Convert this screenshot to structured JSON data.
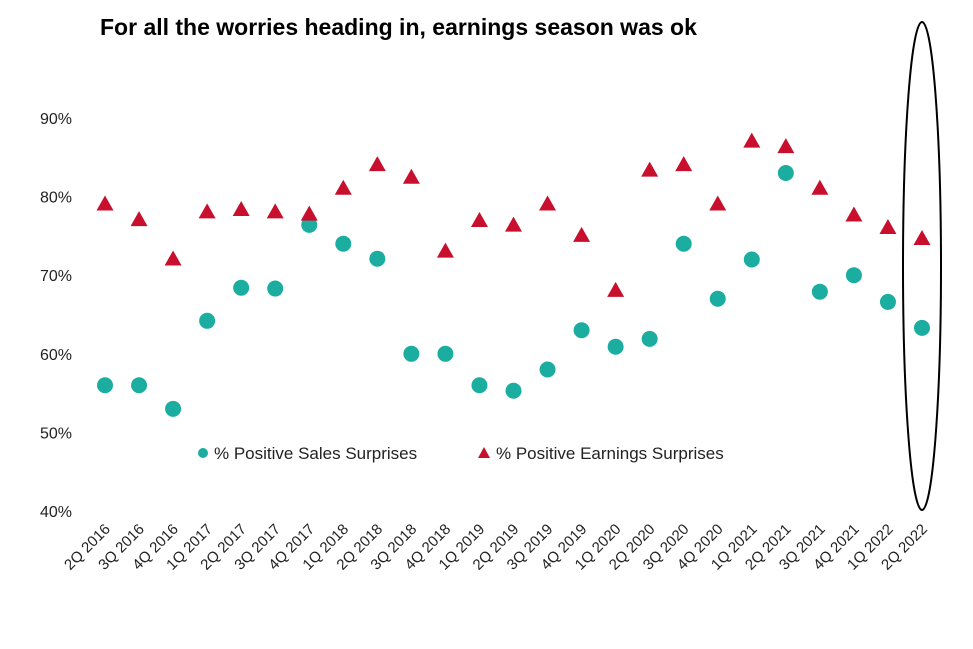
{
  "chart_data": {
    "type": "scatter",
    "title": "For all the worries heading in, earnings season was ok",
    "categories": [
      "2Q 2016",
      "3Q 2016",
      "4Q 2016",
      "1Q 2017",
      "2Q 2017",
      "3Q 2017",
      "4Q 2017",
      "1Q 2018",
      "2Q 2018",
      "3Q 2018",
      "4Q 2018",
      "1Q 2019",
      "2Q 2019",
      "3Q 2019",
      "4Q 2019",
      "1Q 2020",
      "2Q 2020",
      "3Q 2020",
      "4Q 2020",
      "1Q 2021",
      "2Q 2021",
      "3Q 2021",
      "4Q 2021",
      "1Q 2022",
      "2Q 2022"
    ],
    "series": [
      {
        "name": "% Positive Sales Surprises",
        "marker": "circle",
        "color": "#1aada0",
        "values": [
          56,
          56,
          53,
          64.2,
          68.4,
          68.3,
          76.4,
          74,
          72.1,
          60,
          60,
          56,
          55.3,
          58,
          63,
          60.9,
          61.9,
          74,
          67,
          72,
          83,
          67.9,
          70,
          66.6,
          63.3
        ]
      },
      {
        "name": "% Positive Earnings Surprises",
        "marker": "triangle",
        "color": "#c8102e",
        "values": [
          79,
          77,
          72,
          78,
          78.3,
          78,
          77.7,
          81,
          84,
          82.4,
          73,
          76.9,
          76.3,
          79,
          75,
          68,
          83.3,
          84,
          79,
          87,
          86.3,
          81,
          77.6,
          76,
          74.6
        ]
      }
    ],
    "ylim": [
      40,
      90
    ],
    "yticks": [
      40,
      50,
      60,
      70,
      80,
      90
    ],
    "ytick_labels": [
      "40%",
      "50%",
      "60%",
      "70%",
      "80%",
      "90%"
    ],
    "legend_position": "inside-bottom-center",
    "grid": false,
    "annotation": "ellipse highlighting 2Q 2022"
  }
}
